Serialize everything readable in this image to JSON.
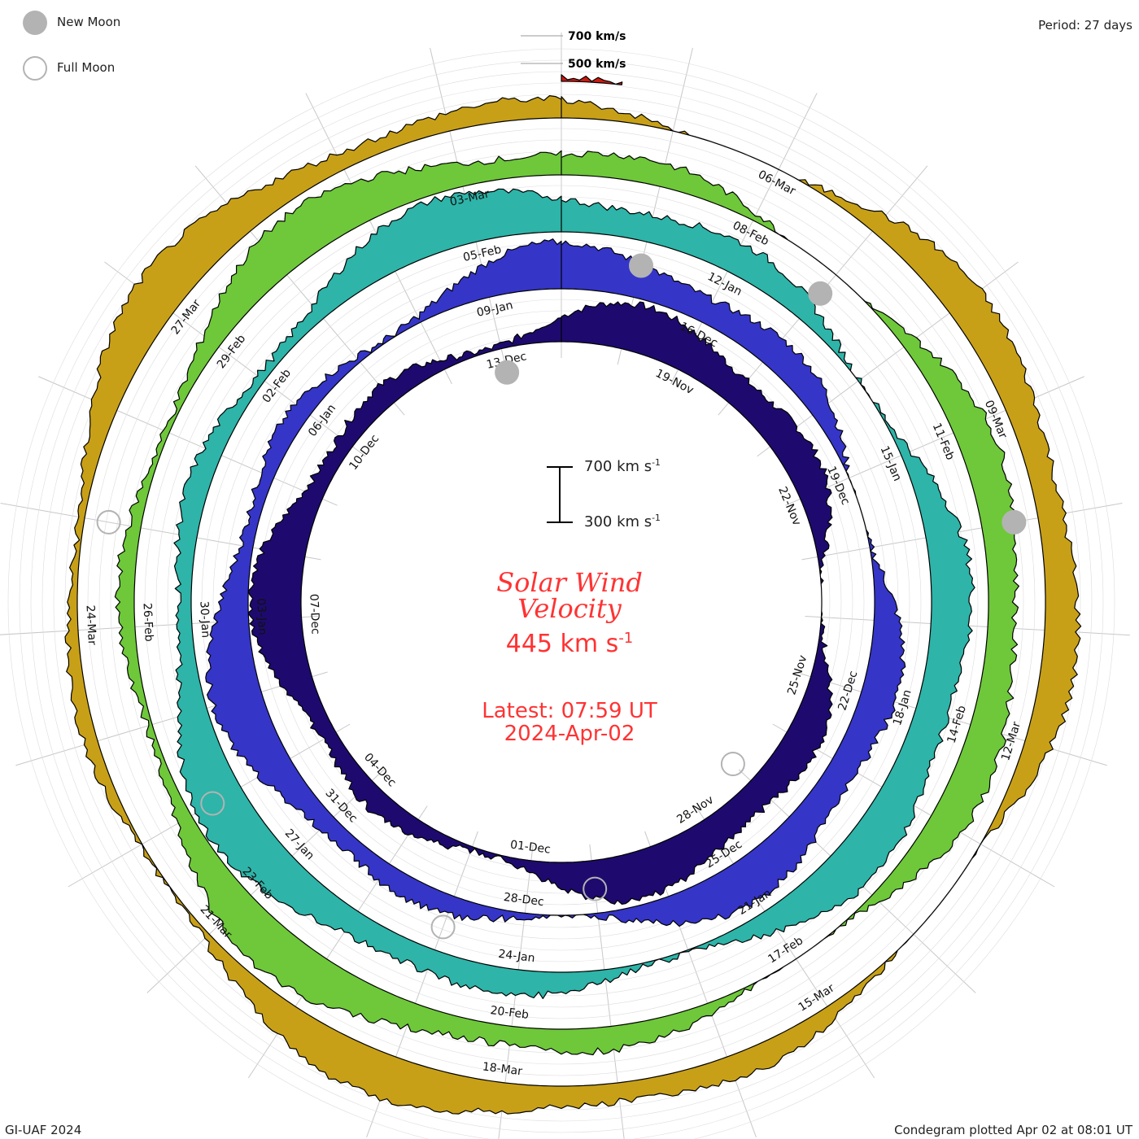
{
  "page": {
    "title_line1": "Solar Wind",
    "title_line2": "Velocity",
    "current_value": "445",
    "current_unit": "km s",
    "unit_exponent": "-1",
    "latest_time": "Latest: 07:59 UT",
    "latest_date": "2024-Apr-02",
    "period": "Period: 27 days",
    "credit": "GI-UAF 2024",
    "plotted": "Condegram plotted Apr 02 at 08:01 UT"
  },
  "legend": {
    "new_moon": "New Moon",
    "full_moon": "Full Moon",
    "new_moon_color": "#b3b3b3",
    "full_moon_color": "#b3b3b3"
  },
  "scale_bar": {
    "top_label": "700 km s",
    "bottom_label": "300 km s",
    "exponent": "-1"
  },
  "chart_data": {
    "type": "area",
    "title": "Solar Wind Velocity",
    "period_days": 27,
    "units": "km/s",
    "ref_levels": [
      {
        "label": "700 km/s",
        "value": 700
      },
      {
        "label": "500 km/s",
        "value": 500
      }
    ],
    "rings": [
      {
        "index": 1,
        "start": "2023-11-17",
        "dates": [
          "19-Nov",
          "22-Nov",
          "25-Nov",
          "28-Nov",
          "01-Dec",
          "04-Dec",
          "07-Dec",
          "10-Dec",
          "13-Dec"
        ],
        "color": "#1e0a6e",
        "mean_speed": 440
      },
      {
        "index": 2,
        "start": "2023-12-14",
        "dates": [
          "16-Dec",
          "19-Dec",
          "22-Dec",
          "25-Dec",
          "28-Dec",
          "31-Dec",
          "03-Jan",
          "06-Jan",
          "09-Jan"
        ],
        "color": "#3535c8",
        "mean_speed": 430
      },
      {
        "index": 3,
        "start": "2024-01-10",
        "dates": [
          "12-Jan",
          "15-Jan",
          "18-Jan",
          "21-Jan",
          "24-Jan",
          "27-Jan",
          "30-Jan",
          "02-Feb",
          "05-Feb"
        ],
        "color": "#2eb4a8",
        "mean_speed": 450
      },
      {
        "index": 4,
        "start": "2024-02-06",
        "dates": [
          "08-Feb",
          "11-Feb",
          "14-Feb",
          "17-Feb",
          "20-Feb",
          "23-Feb",
          "26-Feb",
          "29-Feb",
          "03-Mar"
        ],
        "color": "#6ec83a",
        "mean_speed": 420
      },
      {
        "index": 5,
        "start": "2024-03-04",
        "dates": [
          "06-Mar",
          "09-Mar",
          "12-Mar",
          "15-Mar",
          "18-Mar",
          "21-Mar",
          "24-Mar",
          "27-Mar"
        ],
        "color": "#c8a018",
        "mean_speed": 410
      },
      {
        "index": 6,
        "start": "2024-03-31",
        "dates": [],
        "color": "#cc1a10",
        "mean_speed": 445
      }
    ],
    "moons": [
      {
        "type": "new",
        "date": "2023-12-13"
      },
      {
        "type": "new",
        "date": "2024-01-11"
      },
      {
        "type": "new",
        "date": "2024-02-09"
      },
      {
        "type": "new",
        "date": "2024-03-10"
      },
      {
        "type": "full",
        "date": "2023-11-27"
      },
      {
        "type": "full",
        "date": "2023-12-27"
      },
      {
        "type": "full",
        "date": "2024-01-25"
      },
      {
        "type": "full",
        "date": "2024-02-24"
      },
      {
        "type": "full",
        "date": "2024-03-25"
      }
    ]
  }
}
